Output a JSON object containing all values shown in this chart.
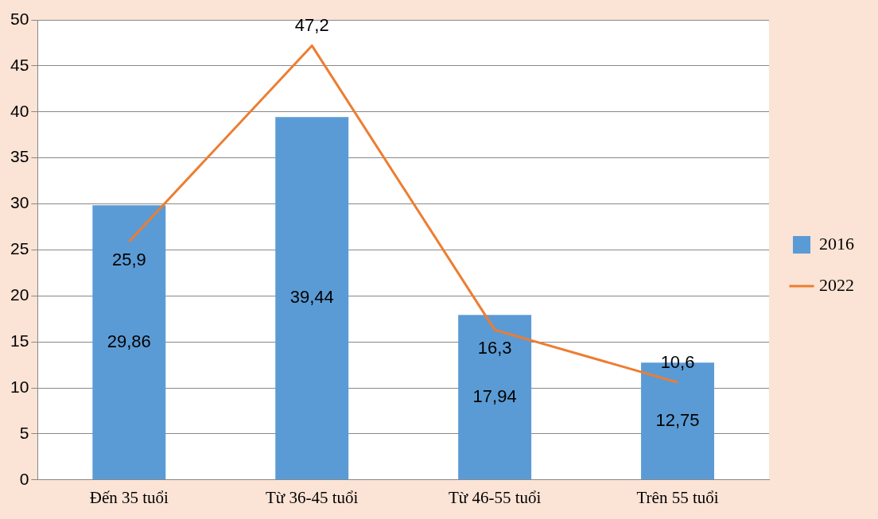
{
  "chart_data": {
    "type": "bar",
    "categories": [
      "Đến 35 tuổi",
      "Từ 36-45 tuổi",
      "Từ 46-55 tuổi",
      "Trên 55 tuổi"
    ],
    "series": [
      {
        "name": "2016",
        "type": "bar",
        "color": "#5b9bd5",
        "values": [
          29.86,
          39.44,
          17.94,
          12.75
        ],
        "value_labels": [
          "29,86",
          "39,44",
          "17,94",
          "12,75"
        ]
      },
      {
        "name": "2022",
        "type": "line",
        "color": "#ed7d31",
        "values": [
          25.9,
          47.2,
          16.3,
          10.6
        ],
        "value_labels": [
          "25,9",
          "47,2",
          "16,3",
          "10,6"
        ]
      }
    ],
    "ylim": [
      0,
      50
    ],
    "yticks": [
      0,
      5,
      10,
      15,
      20,
      25,
      30,
      35,
      40,
      45,
      50
    ],
    "grid": "y",
    "legend": "right",
    "marker": "none"
  }
}
